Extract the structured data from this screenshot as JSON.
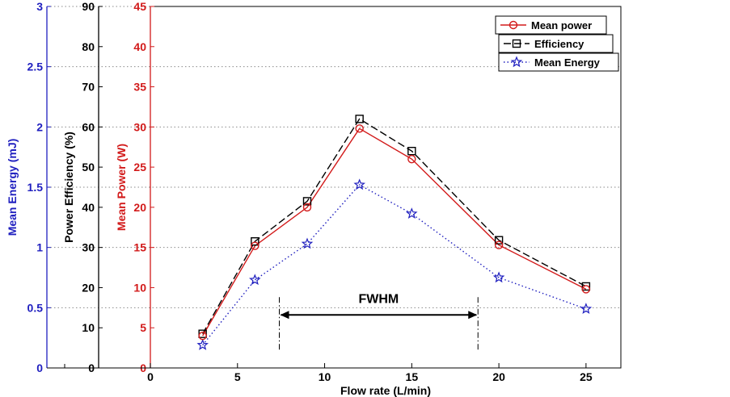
{
  "chart_data": {
    "type": "line",
    "x": [
      3,
      6,
      9,
      12,
      15,
      20,
      25
    ],
    "xlabel": "Flow rate (L/min)",
    "xlim": [
      0,
      27
    ],
    "xticks": [
      "0",
      "5",
      "10",
      "15",
      "20",
      "25"
    ],
    "grid": "horizontal dotted",
    "legend_position": "top-right",
    "axes": [
      {
        "id": "energy",
        "label": "Mean Energy (mJ)",
        "color": "#1f1fbf",
        "lim": [
          0,
          3
        ],
        "ticks": [
          "0",
          "0.5",
          "1",
          "1.5",
          "2",
          "2.5",
          "3"
        ]
      },
      {
        "id": "efficiency",
        "label": "Power Efficiency (%)",
        "color": "#000000",
        "lim": [
          0,
          90
        ],
        "ticks": [
          "0",
          "10",
          "20",
          "30",
          "40",
          "50",
          "60",
          "70",
          "80",
          "90"
        ]
      },
      {
        "id": "power",
        "label": "Mean Power (W)",
        "color": "#d21a1a",
        "lim": [
          0,
          45
        ],
        "ticks": [
          "0",
          "5",
          "10",
          "15",
          "20",
          "25",
          "30",
          "35",
          "40",
          "45"
        ]
      }
    ],
    "series": [
      {
        "name": "Mean power",
        "axis": "power",
        "color": "#d21a1a",
        "marker": "circle",
        "dash": "solid",
        "values": [
          4,
          15.2,
          20,
          29.8,
          26,
          15.3,
          9.8
        ]
      },
      {
        "name": "Efficiency",
        "axis": "efficiency",
        "color": "#000000",
        "marker": "square",
        "dash": "dashed",
        "values": [
          8.5,
          31.5,
          41.5,
          62,
          54,
          31.8,
          20.3
        ]
      },
      {
        "name": "Mean Energy",
        "axis": "energy",
        "color": "#1f1fbf",
        "marker": "star",
        "dash": "dotted",
        "values": [
          0.19,
          0.73,
          1.03,
          1.52,
          1.28,
          0.75,
          0.49
        ]
      }
    ],
    "annotations": [
      {
        "text": "FWHM",
        "x_start": 7.4,
        "x_end": 18.8,
        "y_power": 6.6
      }
    ]
  }
}
